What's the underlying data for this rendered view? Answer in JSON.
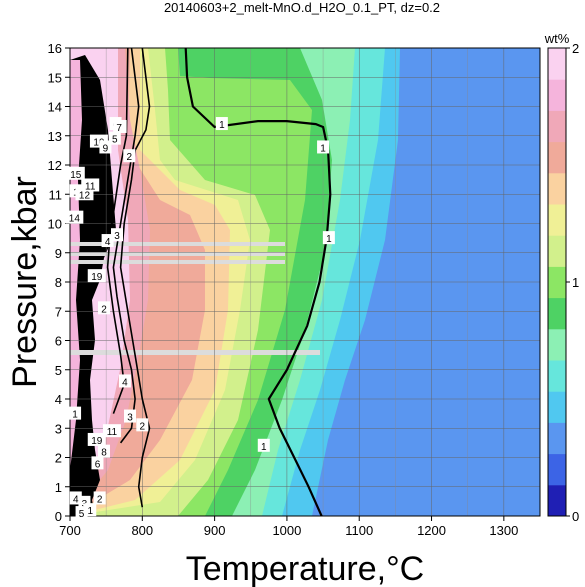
{
  "chart_data": {
    "type": "heatmap",
    "title": "20140603+2_melt-MnO.d_H2O_0.1_PT, dz=0.2",
    "xlabel": "Temperature,°C",
    "ylabel": "Pressure,kbar",
    "xlim": [
      700,
      1350
    ],
    "ylim": [
      0,
      16
    ],
    "xticks": [
      "700",
      "800",
      "900",
      "1000",
      "1100",
      "1200",
      "1300"
    ],
    "yticks": [
      "0",
      "1",
      "2",
      "3",
      "4",
      "5",
      "6",
      "7",
      "8",
      "9",
      "10",
      "11",
      "12",
      "13",
      "14",
      "15",
      "16"
    ],
    "grid": true,
    "colorbar": {
      "unit": "wt%",
      "range": [
        0,
        2
      ],
      "tick_labels": [
        "0",
        "1",
        "2"
      ],
      "colors": [
        "#1f1fb4",
        "#3c64e6",
        "#5a96f0",
        "#50c8f0",
        "#66e6dc",
        "#8cf0b4",
        "#4ed264",
        "#8ce664",
        "#d2f08c",
        "#f0f096",
        "#fad2a0",
        "#f0aa9a",
        "#f0a8b8",
        "#f5b4dc",
        "#fad2f0"
      ]
    },
    "contour_lines": [
      {
        "level": "1",
        "points": [
          [
            1048,
            0
          ],
          [
            1030,
            1.0
          ],
          [
            1010,
            2.0
          ],
          [
            990,
            3.0
          ],
          [
            975,
            4.0
          ],
          [
            1000,
            5.0
          ],
          [
            1028,
            6.5
          ],
          [
            1045,
            8.0
          ],
          [
            1055,
            9.5
          ],
          [
            1060,
            11.0
          ],
          [
            1057,
            12.5
          ],
          [
            1050,
            13.3
          ],
          [
            1040,
            13.4
          ],
          [
            1000,
            13.5
          ],
          [
            960,
            13.5
          ],
          [
            900,
            13.3
          ],
          [
            870,
            14.0
          ],
          [
            862,
            15.0
          ],
          [
            860,
            16
          ]
        ]
      },
      {
        "level": "2",
        "points": [
          [
            800,
            0.3
          ],
          [
            795,
            1.0
          ],
          [
            800,
            2.0
          ],
          [
            810,
            3.0
          ],
          [
            800,
            4.0
          ],
          [
            790,
            5.5
          ],
          [
            780,
            7.0
          ],
          [
            770,
            8.5
          ],
          [
            775,
            10.0
          ],
          [
            785,
            11.5
          ],
          [
            790,
            12.5
          ],
          [
            805,
            13.2
          ],
          [
            810,
            14.0
          ],
          [
            805,
            15.0
          ],
          [
            800,
            16
          ]
        ]
      },
      {
        "level": "3",
        "points": [
          [
            770,
            2.5
          ],
          [
            785,
            3.0
          ],
          [
            790,
            4.0
          ],
          [
            785,
            5.0
          ],
          [
            775,
            6.0
          ],
          [
            765,
            7.5
          ],
          [
            760,
            8.5
          ],
          [
            770,
            10.0
          ],
          [
            780,
            11.5
          ],
          [
            790,
            13.0
          ],
          [
            795,
            14.0
          ],
          [
            790,
            15.0
          ],
          [
            785,
            16
          ]
        ]
      },
      {
        "level": "4",
        "points": [
          [
            760,
            3.5
          ],
          [
            775,
            4.5
          ],
          [
            770,
            5.5
          ],
          [
            760,
            7.0
          ],
          [
            752,
            8.5
          ],
          [
            755,
            9.5
          ],
          [
            770,
            12.0
          ],
          [
            778,
            13.0
          ],
          [
            780,
            16
          ]
        ]
      }
    ],
    "contour_labels": [
      {
        "text": "1",
        "x": 910,
        "y": 13.4
      },
      {
        "text": "1",
        "x": 1050,
        "y": 12.6
      },
      {
        "text": "1",
        "x": 1058,
        "y": 9.5
      },
      {
        "text": "1",
        "x": 968,
        "y": 2.4
      },
      {
        "text": "2",
        "x": 782,
        "y": 12.3
      },
      {
        "text": "2",
        "x": 800,
        "y": 3.1
      },
      {
        "text": "3",
        "x": 770,
        "y": 13.3
      },
      {
        "text": "3",
        "x": 765,
        "y": 9.6
      },
      {
        "text": "3",
        "x": 783,
        "y": 3.4
      },
      {
        "text": "4",
        "x": 752,
        "y": 9.4
      },
      {
        "text": "4",
        "x": 776,
        "y": 4.6
      },
      {
        "text": "5",
        "x": 762,
        "y": 12.9
      },
      {
        "text": "6",
        "x": 763,
        "y": 13.4
      },
      {
        "text": "7",
        "x": 768,
        "y": 13.3
      },
      {
        "text": "1",
        "x": 707,
        "y": 3.5
      },
      {
        "text": "19",
        "x": 737,
        "y": 8.2
      },
      {
        "text": "2",
        "x": 747,
        "y": 7.1
      },
      {
        "text": "11",
        "x": 758,
        "y": 2.9
      },
      {
        "text": "19",
        "x": 737,
        "y": 2.6
      },
      {
        "text": "8",
        "x": 747,
        "y": 2.2
      },
      {
        "text": "6",
        "x": 738,
        "y": 1.8
      },
      {
        "text": "4",
        "x": 708,
        "y": 0.6
      },
      {
        "text": "3",
        "x": 720,
        "y": 0.45
      },
      {
        "text": "2",
        "x": 741,
        "y": 0.6
      },
      {
        "text": "5",
        "x": 716,
        "y": 0.1
      },
      {
        "text": "1",
        "x": 728,
        "y": 0.2
      },
      {
        "text": "15",
        "x": 708,
        "y": 11.7
      },
      {
        "text": "13",
        "x": 712,
        "y": 11.1
      },
      {
        "text": "12",
        "x": 720,
        "y": 11.0
      },
      {
        "text": "11",
        "x": 728,
        "y": 11.3
      },
      {
        "text": "14",
        "x": 706,
        "y": 10.2
      },
      {
        "text": "10",
        "x": 740,
        "y": 12.8
      },
      {
        "text": "9",
        "x": 749,
        "y": 12.6
      }
    ]
  }
}
